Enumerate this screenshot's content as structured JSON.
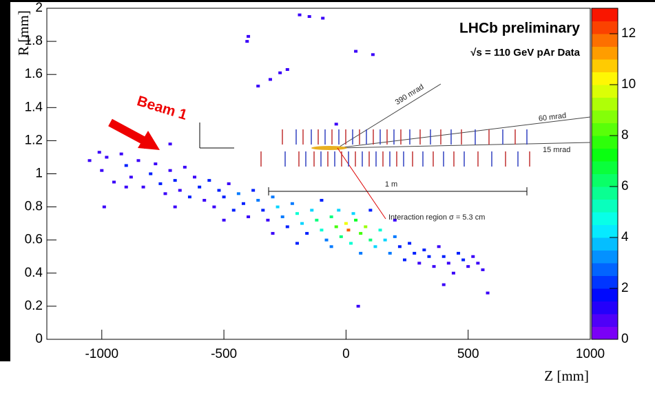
{
  "chart_data": {
    "type": "hist2d",
    "title": "LHCb preliminary",
    "subtitle": "√s = 110 GeV pAr Data",
    "xlabel": "Z [mm]",
    "ylabel": "R [mm]",
    "annotations": {
      "beam": "Beam 1",
      "a390": "390 mrad",
      "a60": "60 mrad",
      "a15": "15 mrad",
      "scale": "1 m",
      "region": "Interaction region  σ = 5.3 cm"
    },
    "xlim": [
      -1225,
      1000
    ],
    "xticks": [
      -1000,
      -500,
      0,
      500,
      1000
    ],
    "ylim": [
      0,
      2
    ],
    "yticks": [
      0,
      0.2,
      0.4,
      0.6,
      0.8,
      1,
      1.2,
      1.4,
      1.6,
      1.8,
      2
    ],
    "zlim": [
      0,
      13
    ],
    "zticks": [
      0,
      2,
      4,
      6,
      8,
      10,
      12
    ],
    "x": [
      -1050,
      -1000,
      -980,
      -950,
      -920,
      -900,
      -880,
      -850,
      -830,
      -800,
      -780,
      -760,
      -740,
      -720,
      -700,
      -680,
      -660,
      -640,
      -620,
      -600,
      -580,
      -560,
      -540,
      -520,
      -500,
      -480,
      -460,
      -440,
      -420,
      -400,
      -380,
      -360,
      -340,
      -320,
      -300,
      -280,
      -260,
      -240,
      -220,
      -200,
      -180,
      -160,
      -140,
      -120,
      -100,
      -80,
      -60,
      -40,
      -20,
      0,
      10,
      20,
      40,
      60,
      80,
      100,
      120,
      140,
      160,
      180,
      200,
      220,
      240,
      260,
      280,
      300,
      320,
      340,
      360,
      380,
      400,
      420,
      440,
      460,
      480,
      500,
      520,
      540,
      560,
      580,
      400,
      50,
      -30,
      30,
      -60,
      60,
      -100,
      100,
      -200,
      200,
      -300,
      -500,
      -700,
      -900,
      -190,
      -150,
      -95,
      -400,
      -405,
      40,
      110,
      -240,
      -270,
      -310,
      -360,
      -40,
      -720,
      -820,
      -1010,
      -990
    ],
    "y": [
      1.08,
      1.02,
      1.1,
      0.95,
      1.12,
      1.05,
      0.98,
      1.08,
      0.92,
      1.0,
      1.06,
      0.94,
      0.88,
      1.02,
      0.96,
      0.9,
      1.04,
      0.86,
      0.98,
      0.92,
      0.84,
      0.96,
      0.8,
      0.9,
      0.86,
      0.94,
      0.78,
      0.88,
      0.82,
      0.74,
      0.9,
      0.84,
      0.78,
      0.72,
      0.86,
      0.8,
      0.74,
      0.68,
      0.82,
      0.76,
      0.7,
      0.64,
      0.78,
      0.72,
      0.66,
      0.6,
      0.74,
      0.68,
      0.62,
      0.7,
      0.66,
      0.58,
      0.72,
      0.64,
      0.68,
      0.6,
      0.56,
      0.66,
      0.6,
      0.52,
      0.62,
      0.56,
      0.48,
      0.58,
      0.52,
      0.46,
      0.54,
      0.5,
      0.44,
      0.56,
      0.5,
      0.46,
      0.4,
      0.52,
      0.48,
      0.44,
      0.5,
      0.46,
      0.42,
      0.28,
      0.33,
      0.2,
      0.78,
      0.76,
      0.56,
      0.52,
      0.84,
      0.78,
      0.58,
      0.72,
      0.64,
      0.72,
      0.8,
      0.92,
      1.96,
      1.95,
      1.94,
      1.83,
      1.8,
      1.74,
      1.72,
      1.63,
      1.61,
      1.57,
      1.53,
      1.3,
      1.18,
      1.16,
      1.13,
      0.8
    ],
    "z": [
      1,
      1,
      1,
      1,
      1,
      2,
      1,
      1,
      1,
      2,
      1,
      2,
      1,
      1,
      2,
      1,
      1,
      2,
      1,
      2,
      1,
      2,
      1,
      2,
      2,
      1,
      2,
      3,
      2,
      1,
      2,
      3,
      2,
      1,
      3,
      4,
      3,
      2,
      3,
      5,
      4,
      2,
      4,
      6,
      5,
      3,
      6,
      8,
      6,
      10,
      12,
      5,
      7,
      8,
      9,
      6,
      4,
      5,
      4,
      3,
      3,
      2,
      2,
      2,
      2,
      1,
      2,
      2,
      1,
      1,
      2,
      1,
      1,
      2,
      2,
      1,
      1,
      1,
      1,
      1,
      1,
      1,
      4,
      4,
      3,
      3,
      2,
      2,
      2,
      1,
      1,
      1,
      1,
      1,
      1,
      1,
      1,
      1,
      1,
      1,
      1,
      1,
      1,
      1,
      1,
      1,
      1,
      1,
      1,
      1
    ]
  }
}
